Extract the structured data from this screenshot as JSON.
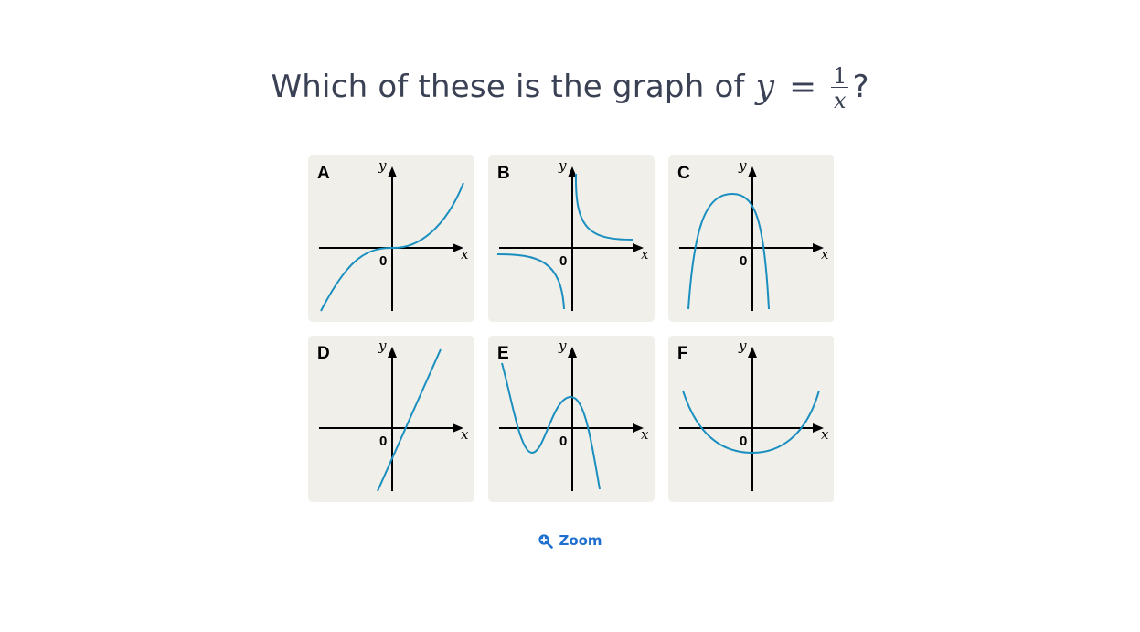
{
  "question": {
    "prefix": "Which of these is the graph of",
    "var_y": "y",
    "equals": "=",
    "numerator": "1",
    "denominator": "x",
    "suffix": "?"
  },
  "figure": {
    "panels": [
      {
        "letter": "A",
        "y_label": "y",
        "x_label": "x",
        "origin_label": "0"
      },
      {
        "letter": "B",
        "y_label": "y",
        "x_label": "x",
        "origin_label": "0"
      },
      {
        "letter": "C",
        "y_label": "y",
        "x_label": "x",
        "origin_label": "0"
      },
      {
        "letter": "D",
        "y_label": "y",
        "x_label": "x",
        "origin_label": "0"
      },
      {
        "letter": "E",
        "y_label": "y",
        "x_label": "x",
        "origin_label": "0"
      },
      {
        "letter": "F",
        "y_label": "y",
        "x_label": "x",
        "origin_label": "0"
      }
    ],
    "panel_bg": "#f0efea",
    "curve_color": "#1a8fbf",
    "axis_color": "#000000"
  },
  "zoom": {
    "label": "Zoom",
    "icon": "zoom-in-icon",
    "color": "#1e6fce"
  }
}
